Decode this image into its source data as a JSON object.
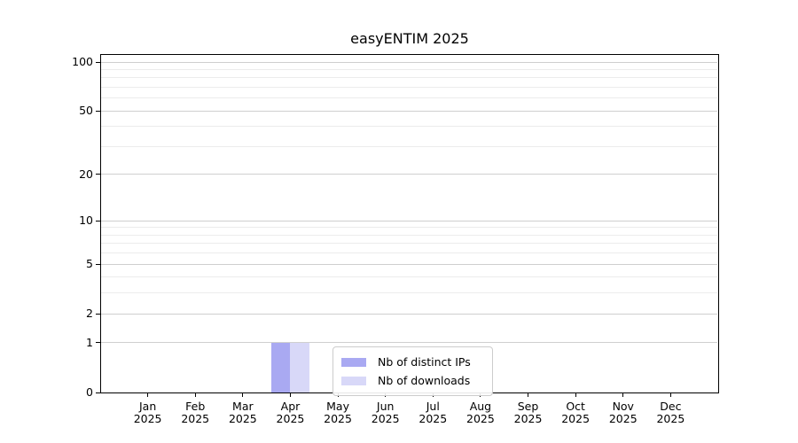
{
  "chart_data": {
    "type": "bar",
    "title": "easyENTIM 2025",
    "x": {
      "categories": [
        "Jan",
        "Feb",
        "Mar",
        "Apr",
        "May",
        "Jun",
        "Jul",
        "Aug",
        "Sep",
        "Oct",
        "Nov",
        "Dec"
      ],
      "year": "2025"
    },
    "y_axis": {
      "scale": "log(value+1)",
      "ticks": [
        100,
        50,
        20,
        10,
        5,
        2,
        1,
        0
      ],
      "minor_ticks": [
        3,
        4,
        6,
        7,
        8,
        9,
        30,
        40,
        60,
        70,
        80,
        90
      ],
      "ylim": [
        0,
        112
      ],
      "grid": true
    },
    "series": [
      {
        "name": "Nb of distinct IPs",
        "color": "#a9a9f2",
        "values": [
          0,
          0,
          0,
          1,
          0,
          0,
          0,
          0,
          0,
          0,
          0,
          0
        ]
      },
      {
        "name": "Nb of downloads",
        "color": "#d8d8f8",
        "values": [
          0,
          0,
          0,
          1,
          0,
          0,
          0,
          0,
          0,
          0,
          0,
          0
        ]
      }
    ],
    "legend": {
      "position": "lower-center-inside"
    }
  }
}
